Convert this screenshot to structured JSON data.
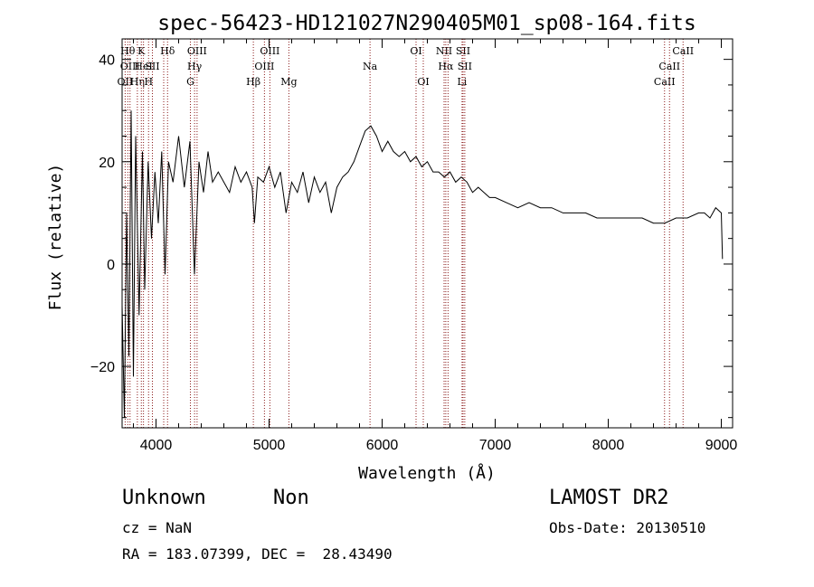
{
  "chart_data": {
    "type": "line",
    "title": "spec-56423-HD121027N290405M01_sp08-164.fits",
    "xlabel": "Wavelength (Å)",
    "ylabel": "Flux (relative)",
    "xlim": [
      3700,
      9100
    ],
    "ylim": [
      -32,
      44
    ],
    "xticks": [
      4000,
      5000,
      6000,
      7000,
      8000,
      9000
    ],
    "yticks": [
      -20,
      0,
      20,
      40
    ],
    "grid": false,
    "line_color": "#000000",
    "marker_color": "#8b1a1a",
    "series": [
      {
        "x": [
          3700,
          3720,
          3740,
          3760,
          3780,
          3800,
          3820,
          3850,
          3880,
          3900,
          3930,
          3960,
          3990,
          4020,
          4050,
          4080,
          4110,
          4150,
          4200,
          4250,
          4300,
          4340,
          4380,
          4420,
          4460,
          4500,
          4550,
          4600,
          4650,
          4700,
          4750,
          4800,
          4850,
          4870,
          4900,
          4950,
          5000,
          5050,
          5100,
          5150,
          5200,
          5250,
          5300,
          5350,
          5400,
          5450,
          5500,
          5550,
          5600,
          5650,
          5700,
          5750,
          5800,
          5850,
          5900,
          5950,
          6000,
          6050,
          6100,
          6150,
          6200,
          6250,
          6300,
          6350,
          6400,
          6450,
          6500,
          6550,
          6600,
          6650,
          6700,
          6750,
          6800,
          6850,
          6900,
          6950,
          7000,
          7100,
          7200,
          7300,
          7400,
          7500,
          7600,
          7700,
          7800,
          7900,
          8000,
          8100,
          8200,
          8300,
          8400,
          8500,
          8600,
          8700,
          8800,
          8850,
          8900,
          8950,
          9000,
          9010
        ],
        "values": [
          -8,
          -30,
          10,
          -18,
          30,
          -22,
          25,
          -10,
          22,
          -5,
          20,
          5,
          18,
          8,
          22,
          -2,
          20,
          16,
          25,
          15,
          24,
          -2,
          20,
          14,
          22,
          16,
          18,
          16,
          14,
          19,
          16,
          18,
          15,
          8,
          17,
          16,
          19,
          15,
          18,
          10,
          16,
          14,
          18,
          12,
          17,
          14,
          16,
          10,
          15,
          17,
          18,
          20,
          23,
          26,
          27,
          25,
          22,
          24,
          22,
          21,
          22,
          20,
          21,
          19,
          20,
          18,
          18,
          17,
          18,
          16,
          17,
          16,
          14,
          15,
          14,
          13,
          13,
          12,
          11,
          12,
          11,
          11,
          10,
          10,
          10,
          9,
          9,
          9,
          9,
          9,
          8,
          8,
          9,
          9,
          10,
          10,
          9,
          11,
          10,
          1
        ]
      }
    ],
    "lines": [
      {
        "x": 3727,
        "labels": [
          "OII"
        ],
        "rows": [
          2
        ]
      },
      {
        "x": 3750,
        "labels": [
          "Hθ"
        ],
        "rows": [
          0
        ]
      },
      {
        "x": 3770,
        "labels": [
          "OIII"
        ],
        "rows": [
          1
        ]
      },
      {
        "x": 3835,
        "labels": [
          "Hη"
        ],
        "rows": [
          2
        ]
      },
      {
        "x": 3870,
        "labels": [
          "K"
        ],
        "rows": [
          0
        ]
      },
      {
        "x": 3889,
        "labels": [
          "HeI"
        ],
        "rows": [
          1
        ]
      },
      {
        "x": 3934,
        "labels": [
          "H"
        ],
        "rows": [
          2
        ]
      },
      {
        "x": 3968,
        "labels": [
          "SII"
        ],
        "rows": [
          1
        ]
      },
      {
        "x": 4102,
        "labels": [
          "Hδ"
        ],
        "rows": [
          0
        ]
      },
      {
        "x": 4068,
        "labels": [],
        "rows": []
      },
      {
        "x": 4304,
        "labels": [
          "G"
        ],
        "rows": [
          2
        ]
      },
      {
        "x": 4341,
        "labels": [
          "Hγ"
        ],
        "rows": [
          1
        ]
      },
      {
        "x": 4363,
        "labels": [
          "OIII"
        ],
        "rows": [
          0
        ]
      },
      {
        "x": 4861,
        "labels": [
          "Hβ"
        ],
        "rows": [
          2
        ]
      },
      {
        "x": 4959,
        "labels": [
          "OIII"
        ],
        "rows": [
          1
        ]
      },
      {
        "x": 5007,
        "labels": [
          "OIII"
        ],
        "rows": [
          0
        ]
      },
      {
        "x": 5175,
        "labels": [
          "Mg"
        ],
        "rows": [
          2
        ]
      },
      {
        "x": 5893,
        "labels": [
          "Na"
        ],
        "rows": [
          1
        ]
      },
      {
        "x": 6300,
        "labels": [
          "OI"
        ],
        "rows": [
          0
        ]
      },
      {
        "x": 6364,
        "labels": [
          "OI"
        ],
        "rows": [
          2
        ]
      },
      {
        "x": 6548,
        "labels": [
          "NII"
        ],
        "rows": [
          0
        ]
      },
      {
        "x": 6563,
        "labels": [
          "Hα"
        ],
        "rows": [
          1
        ]
      },
      {
        "x": 6583,
        "labels": [],
        "rows": []
      },
      {
        "x": 6707,
        "labels": [
          "Li"
        ],
        "rows": [
          2
        ]
      },
      {
        "x": 6716,
        "labels": [
          "SII"
        ],
        "rows": [
          0
        ]
      },
      {
        "x": 6731,
        "labels": [
          "SII"
        ],
        "rows": [
          1
        ]
      },
      {
        "x": 8498,
        "labels": [
          "CaII"
        ],
        "rows": [
          2
        ]
      },
      {
        "x": 8542,
        "labels": [
          "CaII"
        ],
        "rows": [
          1
        ]
      },
      {
        "x": 8662,
        "labels": [
          "CaII"
        ],
        "rows": [
          0
        ]
      }
    ]
  },
  "info": {
    "class": "Unknown",
    "subclass": "Non",
    "survey": "LAMOST DR2",
    "cz": "cz = NaN",
    "obs_date": "Obs-Date: 20130510",
    "coords": "RA = 183.07399, DEC =  28.43490"
  }
}
